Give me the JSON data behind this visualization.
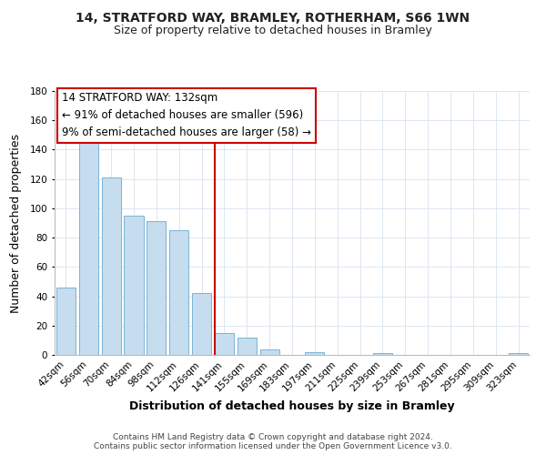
{
  "title": "14, STRATFORD WAY, BRAMLEY, ROTHERHAM, S66 1WN",
  "subtitle": "Size of property relative to detached houses in Bramley",
  "xlabel": "Distribution of detached houses by size in Bramley",
  "ylabel": "Number of detached properties",
  "bar_labels": [
    "42sqm",
    "56sqm",
    "70sqm",
    "84sqm",
    "98sqm",
    "112sqm",
    "126sqm",
    "141sqm",
    "155sqm",
    "169sqm",
    "183sqm",
    "197sqm",
    "211sqm",
    "225sqm",
    "239sqm",
    "253sqm",
    "267sqm",
    "281sqm",
    "295sqm",
    "309sqm",
    "323sqm"
  ],
  "bar_values": [
    46,
    145,
    121,
    95,
    91,
    85,
    42,
    15,
    12,
    4,
    0,
    2,
    0,
    0,
    1,
    0,
    0,
    0,
    0,
    0,
    1
  ],
  "bar_color": "#c5ddef",
  "bar_edge_color": "#7ab4d4",
  "vline_color": "#cc0000",
  "ylim": [
    0,
    180
  ],
  "yticks": [
    0,
    20,
    40,
    60,
    80,
    100,
    120,
    140,
    160,
    180
  ],
  "annotation_title": "14 STRATFORD WAY: 132sqm",
  "annotation_line1": "← 91% of detached houses are smaller (596)",
  "annotation_line2": "9% of semi-detached houses are larger (58) →",
  "footer1": "Contains HM Land Registry data © Crown copyright and database right 2024.",
  "footer2": "Contains public sector information licensed under the Open Government Licence v3.0.",
  "title_fontsize": 10,
  "subtitle_fontsize": 9,
  "axis_label_fontsize": 9,
  "tick_fontsize": 7.5,
  "annotation_fontsize": 8.5,
  "footer_fontsize": 6.5,
  "grid_color": "#dce6f0"
}
